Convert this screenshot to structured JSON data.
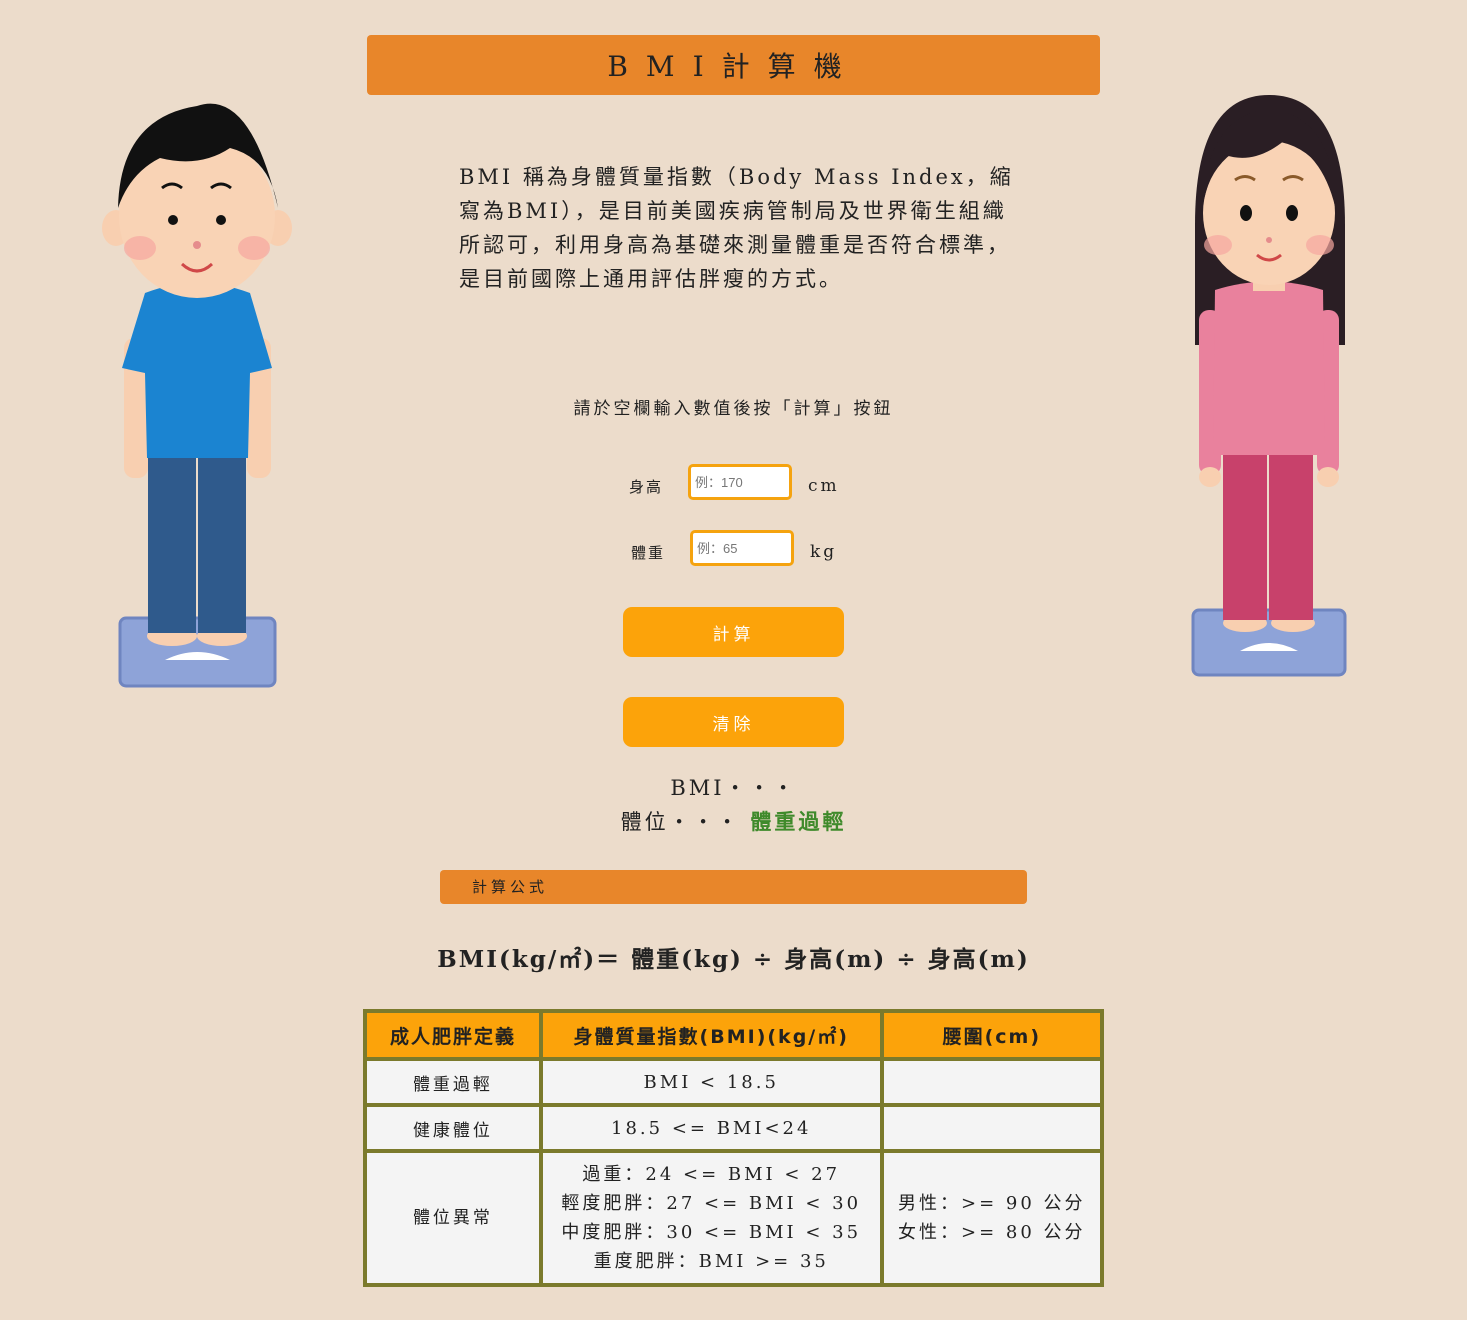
{
  "header": {
    "title": "BMI計算機"
  },
  "intro": {
    "text": "BMI 稱為身體質量指數（Body Mass Index，縮寫為BMI），是目前美國疾病管制局及世界衛生組織所認可，利用身高為基礎來測量體重是否符合標準，是目前國際上通用評估胖瘦的方式。"
  },
  "form": {
    "instruction": "請於空欄輸入數值後按「計算」按鈕",
    "height_label": "身高",
    "height_placeholder": "例：170",
    "height_unit": "cm",
    "weight_label": "體重",
    "weight_placeholder": "例：65",
    "weight_unit": "kg",
    "calculate_label": "計算",
    "clear_label": "清除"
  },
  "result": {
    "bmi_label": "BMI・・・",
    "body_type_label": "體位・・・",
    "body_type_value": "體重過輕"
  },
  "formula": {
    "section_title": "計算公式",
    "text": "BMI(kg/㎡)＝ 體重(kg) ÷ 身高(m) ÷ 身高(m)"
  },
  "table": {
    "headers": [
      "成人肥胖定義",
      "身體質量指數(BMI)(kg/㎡)",
      "腰圍(cm)"
    ],
    "rows": [
      {
        "category": "體重過輕",
        "bmi": [
          "BMI < 18.5"
        ],
        "waist": []
      },
      {
        "category": "健康體位",
        "bmi": [
          "18.5 <= BMI<24"
        ],
        "waist": []
      },
      {
        "category": "體位異常",
        "bmi": [
          "過重：24 <= BMI < 27",
          "輕度肥胖：27 <= BMI < 30",
          "中度肥胖：30 <= BMI < 35",
          "重度肥胖：BMI >= 35"
        ],
        "waist": [
          "男性：>= 90 公分",
          "女性：>= 80 公分"
        ]
      }
    ]
  },
  "colors": {
    "background": "#ecdccb",
    "header_orange": "#e8862a",
    "button_orange": "#fca30a",
    "table_border": "#7b7a2c",
    "result_green": "#3f8a2b"
  },
  "icons": [
    "boy-illustration-icon",
    "girl-illustration-icon"
  ]
}
